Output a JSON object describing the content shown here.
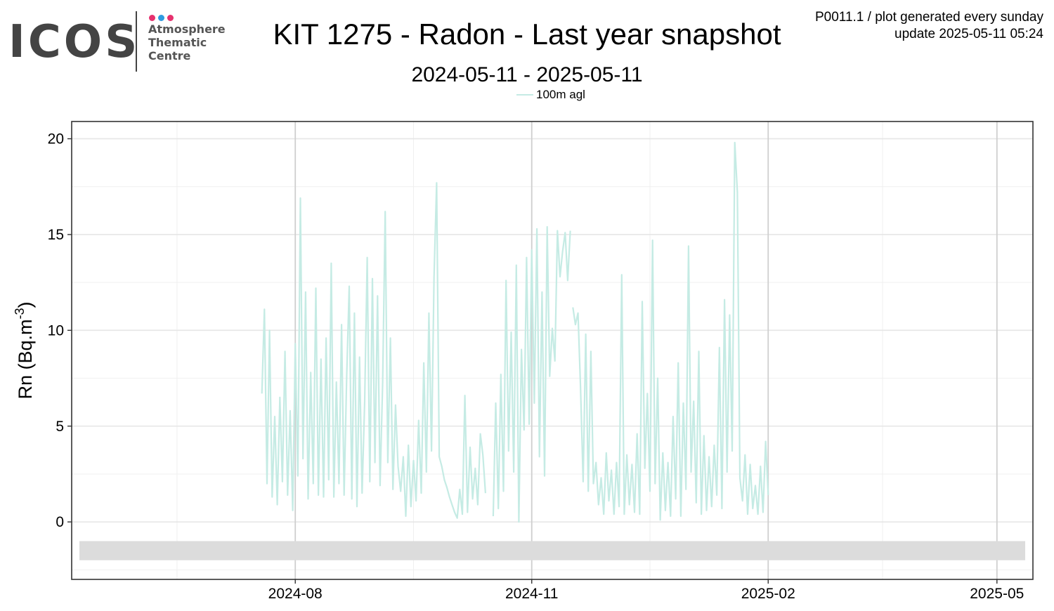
{
  "header": {
    "logo": {
      "word": "ICOS",
      "sub_lines": [
        "Atmosphere",
        "Thematic",
        "Centre"
      ],
      "dot_colors": [
        "#e6316e",
        "#2e9be0",
        "#e6316e"
      ]
    },
    "meta_line1": "P0011.1 / plot generated every sunday",
    "meta_line2": "update  2025-05-11 05:24"
  },
  "chart_data": {
    "type": "line",
    "title": "KIT 1275 - Radon - Last year snapshot",
    "subtitle": "2024-05-11 - 2025-05-11",
    "xlabel": "",
    "ylabel_main": "Rn (Bq.m",
    "ylabel_exp": "-3",
    "ylabel_close": ")",
    "xlim": [
      "2024-05-06",
      "2025-05-15"
    ],
    "ylim": [
      -3,
      20.9
    ],
    "x_ticks": [
      "2024-08-01",
      "2024-11-01",
      "2025-02-01",
      "2025-05-01"
    ],
    "x_tick_labels": [
      "2024-08",
      "2024-11",
      "2025-02",
      "2025-05"
    ],
    "y_ticks": [
      0,
      5,
      10,
      15,
      20
    ],
    "y_tick_labels": [
      "0",
      "5",
      "10",
      "15",
      "20"
    ],
    "grid": true,
    "legend_position": "top",
    "flag_band": {
      "x_start": "2024-05-09",
      "x_end": "2025-05-12",
      "y": [
        -2,
        -1
      ],
      "color": "#dcdcdc"
    },
    "series": [
      {
        "name": "100m agl",
        "color": "#c5ebe4",
        "segments": [
          {
            "x": [
              "2024-07-19",
              "2024-07-20",
              "2024-07-21",
              "2024-07-22",
              "2024-07-23",
              "2024-07-24",
              "2024-07-25",
              "2024-07-26",
              "2024-07-27",
              "2024-07-28",
              "2024-07-29",
              "2024-07-30",
              "2024-07-31",
              "2024-08-01",
              "2024-08-02",
              "2024-08-03",
              "2024-08-04",
              "2024-08-05",
              "2024-08-06",
              "2024-08-07",
              "2024-08-08",
              "2024-08-09",
              "2024-08-10",
              "2024-08-11",
              "2024-08-12",
              "2024-08-13",
              "2024-08-14",
              "2024-08-15",
              "2024-08-16",
              "2024-08-17",
              "2024-08-18",
              "2024-08-19",
              "2024-08-20",
              "2024-08-21",
              "2024-08-22",
              "2024-08-23",
              "2024-08-24",
              "2024-08-25",
              "2024-08-26",
              "2024-08-27",
              "2024-08-28",
              "2024-08-29",
              "2024-08-30",
              "2024-08-31",
              "2024-09-01",
              "2024-09-02",
              "2024-09-03",
              "2024-09-04",
              "2024-09-05",
              "2024-09-06",
              "2024-09-07",
              "2024-09-08",
              "2024-09-09",
              "2024-09-10",
              "2024-09-11",
              "2024-09-12",
              "2024-09-13",
              "2024-09-14",
              "2024-09-15",
              "2024-09-16",
              "2024-09-17",
              "2024-09-18",
              "2024-09-19",
              "2024-09-20",
              "2024-09-21",
              "2024-09-22",
              "2024-09-23",
              "2024-09-24",
              "2024-09-25",
              "2024-09-26",
              "2024-09-27",
              "2024-09-28",
              "2024-09-29",
              "2024-09-30",
              "2024-10-01",
              "2024-10-02",
              "2024-10-03",
              "2024-10-04",
              "2024-10-05",
              "2024-10-06",
              "2024-10-07",
              "2024-10-08",
              "2024-10-09",
              "2024-10-10",
              "2024-10-11",
              "2024-10-12",
              "2024-10-13",
              "2024-10-14"
            ],
            "y": [
              6.7,
              11.1,
              2.0,
              10.0,
              1.3,
              5.5,
              0.9,
              6.5,
              2.1,
              8.9,
              1.4,
              5.8,
              0.6,
              9.3,
              2.4,
              16.9,
              3.3,
              12.0,
              1.2,
              7.8,
              2.0,
              12.2,
              1.4,
              8.5,
              1.3,
              9.6,
              2.2,
              13.5,
              1.3,
              7.3,
              2.0,
              10.3,
              1.4,
              7.6,
              12.3,
              1.2,
              10.9,
              0.8,
              8.6,
              1.5,
              6.3,
              13.8,
              2.1,
              12.7,
              3.1,
              11.8,
              1.9,
              7.3,
              16.2,
              3.1,
              9.6,
              1.7,
              6.1,
              2.9,
              1.6,
              3.4,
              0.3,
              4.0,
              0.8,
              3.2,
              1.1,
              5.3,
              1.5,
              8.3,
              2.6,
              10.9,
              3.7,
              12.8,
              17.7,
              3.4,
              2.9,
              2.2,
              1.8,
              1.3,
              0.9,
              0.5,
              0.2,
              1.7,
              0.4,
              6.6,
              0.5,
              3.9,
              1.2,
              2.8,
              0.9,
              4.6,
              3.5,
              1.5
            ]
          },
          {
            "x": [
              "2024-10-17",
              "2024-10-18",
              "2024-10-19",
              "2024-10-20",
              "2024-10-21",
              "2024-10-22",
              "2024-10-23",
              "2024-10-24",
              "2024-10-25",
              "2024-10-26",
              "2024-10-27",
              "2024-10-28",
              "2024-10-29",
              "2024-10-30",
              "2024-10-31",
              "2024-11-01",
              "2024-11-02",
              "2024-11-03",
              "2024-11-04",
              "2024-11-05",
              "2024-11-06",
              "2024-11-07",
              "2024-11-08",
              "2024-11-09",
              "2024-11-10",
              "2024-11-11",
              "2024-11-12",
              "2024-11-13",
              "2024-11-14",
              "2024-11-15",
              "2024-11-16"
            ],
            "y": [
              0.3,
              6.2,
              0.7,
              7.7,
              1.6,
              12.6,
              3.7,
              9.9,
              2.6,
              13.4,
              0.0,
              9.0,
              4.8,
              13.8,
              5.1,
              14.2,
              6.2,
              15.3,
              3.4,
              12.0,
              2.4,
              15.4,
              7.6,
              10.1,
              8.4,
              15.2,
              12.8,
              14.1,
              15.1,
              12.6,
              15.2
            ]
          },
          {
            "x": [
              "2024-11-17",
              "2024-11-18",
              "2024-11-19",
              "2024-11-20",
              "2024-11-21",
              "2024-11-22",
              "2024-11-23",
              "2024-11-24",
              "2024-11-25",
              "2024-11-26",
              "2024-11-27",
              "2024-11-28",
              "2024-11-29",
              "2024-11-30",
              "2024-12-01",
              "2024-12-02",
              "2024-12-03",
              "2024-12-04",
              "2024-12-05",
              "2024-12-06",
              "2024-12-07",
              "2024-12-08",
              "2024-12-09",
              "2024-12-10",
              "2024-12-11",
              "2024-12-12",
              "2024-12-13",
              "2024-12-14",
              "2024-12-15",
              "2024-12-16",
              "2024-12-17",
              "2024-12-18",
              "2024-12-19",
              "2024-12-20",
              "2024-12-21",
              "2024-12-22",
              "2024-12-23",
              "2024-12-24",
              "2024-12-25",
              "2024-12-26",
              "2024-12-27",
              "2024-12-28",
              "2024-12-29",
              "2024-12-30",
              "2024-12-31",
              "2025-01-01",
              "2025-01-02",
              "2025-01-03",
              "2025-01-04",
              "2025-01-05",
              "2025-01-06",
              "2025-01-07",
              "2025-01-08",
              "2025-01-09",
              "2025-01-10",
              "2025-01-11",
              "2025-01-12",
              "2025-01-13",
              "2025-01-14",
              "2025-01-15",
              "2025-01-16",
              "2025-01-17",
              "2025-01-18",
              "2025-01-19",
              "2025-01-20",
              "2025-01-21",
              "2025-01-22",
              "2025-01-23",
              "2025-01-24",
              "2025-01-25",
              "2025-01-26",
              "2025-01-27",
              "2025-01-28",
              "2025-01-29",
              "2025-01-30",
              "2025-01-31",
              "2025-02-01"
            ],
            "y": [
              11.2,
              10.3,
              10.9,
              7.0,
              2.1,
              9.8,
              1.6,
              8.9,
              2.0,
              3.1,
              0.9,
              2.3,
              0.4,
              3.6,
              1.1,
              2.7,
              0.4,
              3.1,
              0.8,
              12.9,
              0.4,
              3.5,
              0.9,
              3.0,
              0.5,
              4.6,
              0.4,
              11.5,
              2.8,
              6.7,
              1.6,
              14.7,
              2.0,
              7.5,
              0.1,
              3.6,
              0.6,
              3.1,
              0.3,
              5.5,
              1.2,
              8.3,
              0.3,
              6.2,
              1.7,
              14.4,
              2.6,
              6.3,
              1.0,
              8.9,
              0.4,
              4.5,
              0.6,
              3.4,
              0.8,
              4.0,
              1.4,
              9.1,
              0.7,
              11.6,
              2.6,
              10.8,
              3.7,
              19.8,
              17.2,
              2.3,
              1.1,
              3.5,
              0.4,
              3.0,
              0.7,
              1.9,
              0.4,
              2.9,
              0.5,
              4.2,
              1.4
            ]
          }
        ]
      }
    ]
  }
}
